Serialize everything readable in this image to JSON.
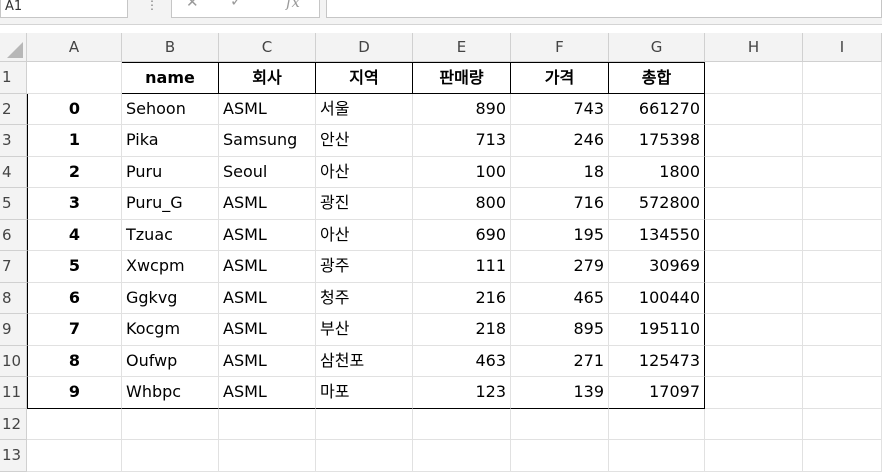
{
  "name_box": {
    "value": "A1"
  },
  "formula_bar": {
    "cancel": "✕",
    "enter": "✓",
    "fx": "fx",
    "value": ""
  },
  "columns": [
    "A",
    "B",
    "C",
    "D",
    "E",
    "F",
    "G",
    "H",
    "I"
  ],
  "rows": [
    "1",
    "2",
    "3",
    "4",
    "5",
    "6",
    "7",
    "8",
    "9",
    "10",
    "11",
    "12",
    "13"
  ],
  "table": {
    "headers": [
      "",
      "name",
      "회사",
      "지역",
      "판매량",
      "가격",
      "총합"
    ],
    "data": [
      [
        "0",
        "Sehoon",
        "ASML",
        "서울",
        "890",
        "743",
        "661270"
      ],
      [
        "1",
        "Pika",
        "Samsung",
        "안산",
        "713",
        "246",
        "175398"
      ],
      [
        "2",
        "Puru",
        "Seoul",
        "아산",
        "100",
        "18",
        "1800"
      ],
      [
        "3",
        "Puru_G",
        "ASML",
        "광진",
        "800",
        "716",
        "572800"
      ],
      [
        "4",
        "Tzuac",
        "ASML",
        "아산",
        "690",
        "195",
        "134550"
      ],
      [
        "5",
        "Xwcpm",
        "ASML",
        "광주",
        "111",
        "279",
        "30969"
      ],
      [
        "6",
        "Ggkvg",
        "ASML",
        "청주",
        "216",
        "465",
        "100440"
      ],
      [
        "7",
        "Kocgm",
        "ASML",
        "부산",
        "218",
        "895",
        "195110"
      ],
      [
        "8",
        "Oufwp",
        "ASML",
        "삼천포",
        "463",
        "271",
        "125473"
      ],
      [
        "9",
        "Whbpc",
        "ASML",
        "마포",
        "123",
        "139",
        "17097"
      ]
    ]
  }
}
